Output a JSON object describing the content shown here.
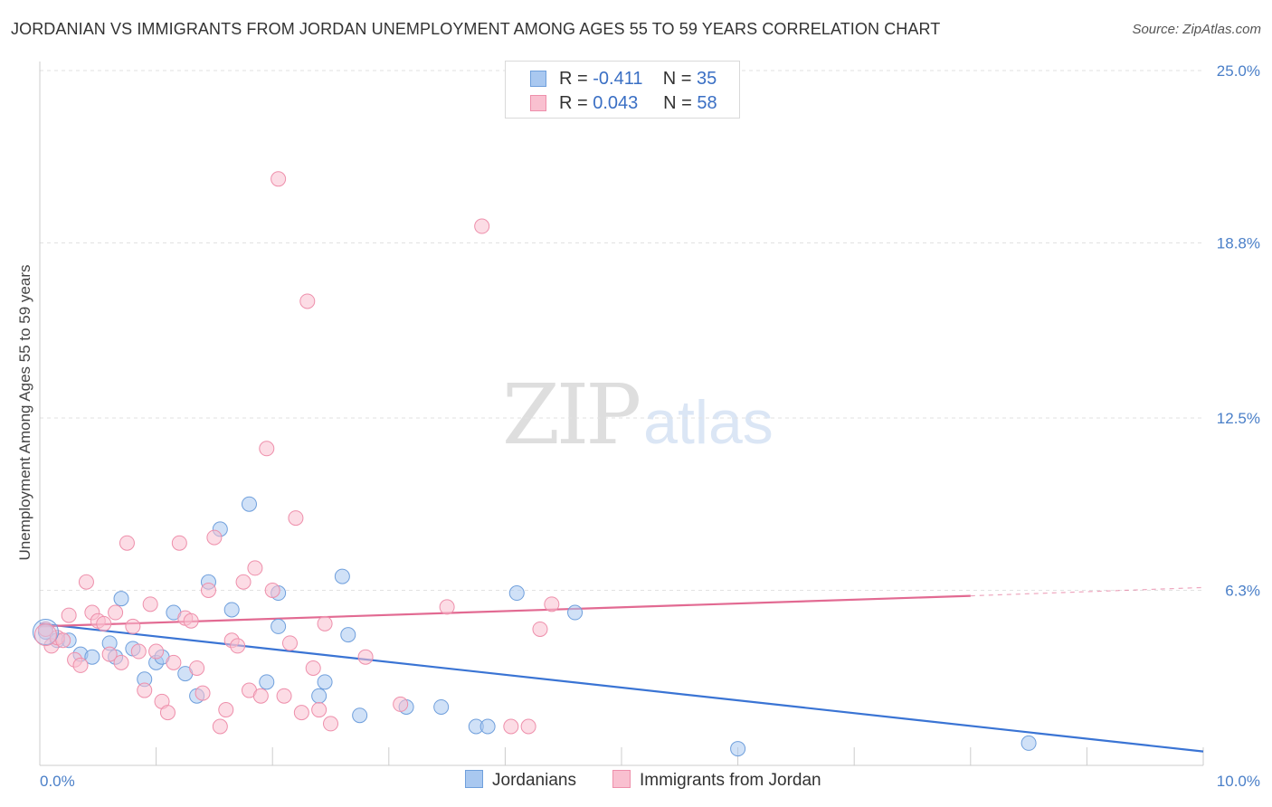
{
  "header": {
    "title": "JORDANIAN VS IMMIGRANTS FROM JORDAN UNEMPLOYMENT AMONG AGES 55 TO 59 YEARS CORRELATION CHART",
    "source": "Source: ZipAtlas.com"
  },
  "watermark": {
    "zip": "ZIP",
    "atlas": "atlas"
  },
  "stats_legend": {
    "rows": [
      {
        "r_label": "R = ",
        "r_value": "-0.411",
        "n_label": "N = ",
        "n_value": "35",
        "color": "#a9c8f0",
        "border": "#6f9fdc"
      },
      {
        "r_label": "R = ",
        "r_value": "0.043",
        "n_label": "N = ",
        "n_value": "58",
        "color": "#f9c0d0",
        "border": "#ee8fab"
      }
    ]
  },
  "bottom_legend": {
    "items": [
      {
        "label": "Jordanians",
        "color": "#a9c8f0",
        "border": "#6f9fdc"
      },
      {
        "label": "Immigrants from Jordan",
        "color": "#f9c0d0",
        "border": "#ee8fab"
      }
    ]
  },
  "chart_data": {
    "type": "scatter",
    "title": "JORDANIAN VS IMMIGRANTS FROM JORDAN UNEMPLOYMENT AMONG AGES 55 TO 59 YEARS CORRELATION CHART",
    "xlabel": "",
    "ylabel": "Unemployment Among Ages 55 to 59 years",
    "xlim": [
      0,
      10
    ],
    "ylim": [
      0,
      25
    ],
    "x_tick_labels": [
      "0.0%",
      "10.0%"
    ],
    "y_ticks": [
      6.3,
      12.5,
      18.8,
      25.0
    ],
    "y_tick_labels": [
      "6.3%",
      "12.5%",
      "18.8%",
      "25.0%"
    ],
    "grid": "horizontal dashed",
    "legend_position": "top-center",
    "series": [
      {
        "name": "Jordanians",
        "color": "#6f9fdc",
        "fill": "#a9c8f0",
        "trend": {
          "x": [
            0,
            10
          ],
          "y": [
            5.1,
            0.5
          ],
          "color": "#3a74d4"
        },
        "points": [
          [
            0.05,
            4.8
          ],
          [
            0.15,
            4.5
          ],
          [
            0.25,
            4.5
          ],
          [
            0.35,
            4.0
          ],
          [
            0.45,
            3.9
          ],
          [
            0.6,
            4.4
          ],
          [
            0.65,
            3.9
          ],
          [
            0.7,
            6.0
          ],
          [
            0.8,
            4.2
          ],
          [
            0.9,
            3.1
          ],
          [
            1.0,
            3.7
          ],
          [
            1.05,
            3.9
          ],
          [
            1.15,
            5.5
          ],
          [
            1.25,
            3.3
          ],
          [
            1.35,
            2.5
          ],
          [
            1.45,
            6.6
          ],
          [
            1.55,
            8.5
          ],
          [
            1.65,
            5.6
          ],
          [
            1.8,
            9.4
          ],
          [
            1.95,
            3.0
          ],
          [
            2.05,
            6.2
          ],
          [
            2.05,
            5.0
          ],
          [
            2.4,
            2.5
          ],
          [
            2.45,
            3.0
          ],
          [
            2.6,
            6.8
          ],
          [
            2.65,
            4.7
          ],
          [
            2.75,
            1.8
          ],
          [
            3.15,
            2.1
          ],
          [
            3.45,
            2.1
          ],
          [
            3.75,
            1.4
          ],
          [
            3.85,
            1.4
          ],
          [
            4.1,
            6.2
          ],
          [
            4.6,
            5.5
          ],
          [
            6.0,
            0.6
          ],
          [
            8.5,
            0.8
          ]
        ]
      },
      {
        "name": "Immigrants from Jordan",
        "color": "#ee8fab",
        "fill": "#f9c0d0",
        "trend": {
          "x": [
            0,
            8
          ],
          "y": [
            5.0,
            6.1
          ],
          "dashed_x": [
            8,
            10
          ],
          "dashed_y": [
            6.1,
            6.4
          ],
          "color": "#e26a92"
        },
        "points": [
          [
            0.05,
            4.9
          ],
          [
            0.1,
            4.3
          ],
          [
            0.15,
            4.6
          ],
          [
            0.2,
            4.5
          ],
          [
            0.25,
            5.4
          ],
          [
            0.3,
            3.8
          ],
          [
            0.35,
            3.6
          ],
          [
            0.4,
            6.6
          ],
          [
            0.45,
            5.5
          ],
          [
            0.5,
            5.2
          ],
          [
            0.55,
            5.1
          ],
          [
            0.6,
            4.0
          ],
          [
            0.65,
            5.5
          ],
          [
            0.7,
            3.7
          ],
          [
            0.75,
            8.0
          ],
          [
            0.8,
            5.0
          ],
          [
            0.85,
            4.1
          ],
          [
            0.9,
            2.7
          ],
          [
            0.95,
            5.8
          ],
          [
            1.0,
            4.1
          ],
          [
            1.05,
            2.3
          ],
          [
            1.1,
            1.9
          ],
          [
            1.15,
            3.7
          ],
          [
            1.2,
            8.0
          ],
          [
            1.25,
            5.3
          ],
          [
            1.3,
            5.2
          ],
          [
            1.35,
            3.5
          ],
          [
            1.4,
            2.6
          ],
          [
            1.45,
            6.3
          ],
          [
            1.5,
            8.2
          ],
          [
            1.55,
            1.4
          ],
          [
            1.6,
            2.0
          ],
          [
            1.65,
            4.5
          ],
          [
            1.7,
            4.3
          ],
          [
            1.75,
            6.6
          ],
          [
            1.8,
            2.7
          ],
          [
            1.85,
            7.1
          ],
          [
            1.9,
            2.5
          ],
          [
            1.95,
            11.4
          ],
          [
            2.0,
            6.3
          ],
          [
            2.05,
            21.1
          ],
          [
            2.1,
            2.5
          ],
          [
            2.15,
            4.4
          ],
          [
            2.2,
            8.9
          ],
          [
            2.25,
            1.9
          ],
          [
            2.3,
            16.7
          ],
          [
            2.35,
            3.5
          ],
          [
            2.4,
            2.0
          ],
          [
            2.45,
            5.1
          ],
          [
            2.5,
            1.5
          ],
          [
            2.8,
            3.9
          ],
          [
            3.1,
            2.2
          ],
          [
            3.5,
            5.7
          ],
          [
            3.8,
            19.4
          ],
          [
            4.05,
            1.4
          ],
          [
            4.2,
            1.4
          ],
          [
            4.3,
            4.9
          ],
          [
            4.4,
            5.8
          ]
        ]
      }
    ]
  }
}
